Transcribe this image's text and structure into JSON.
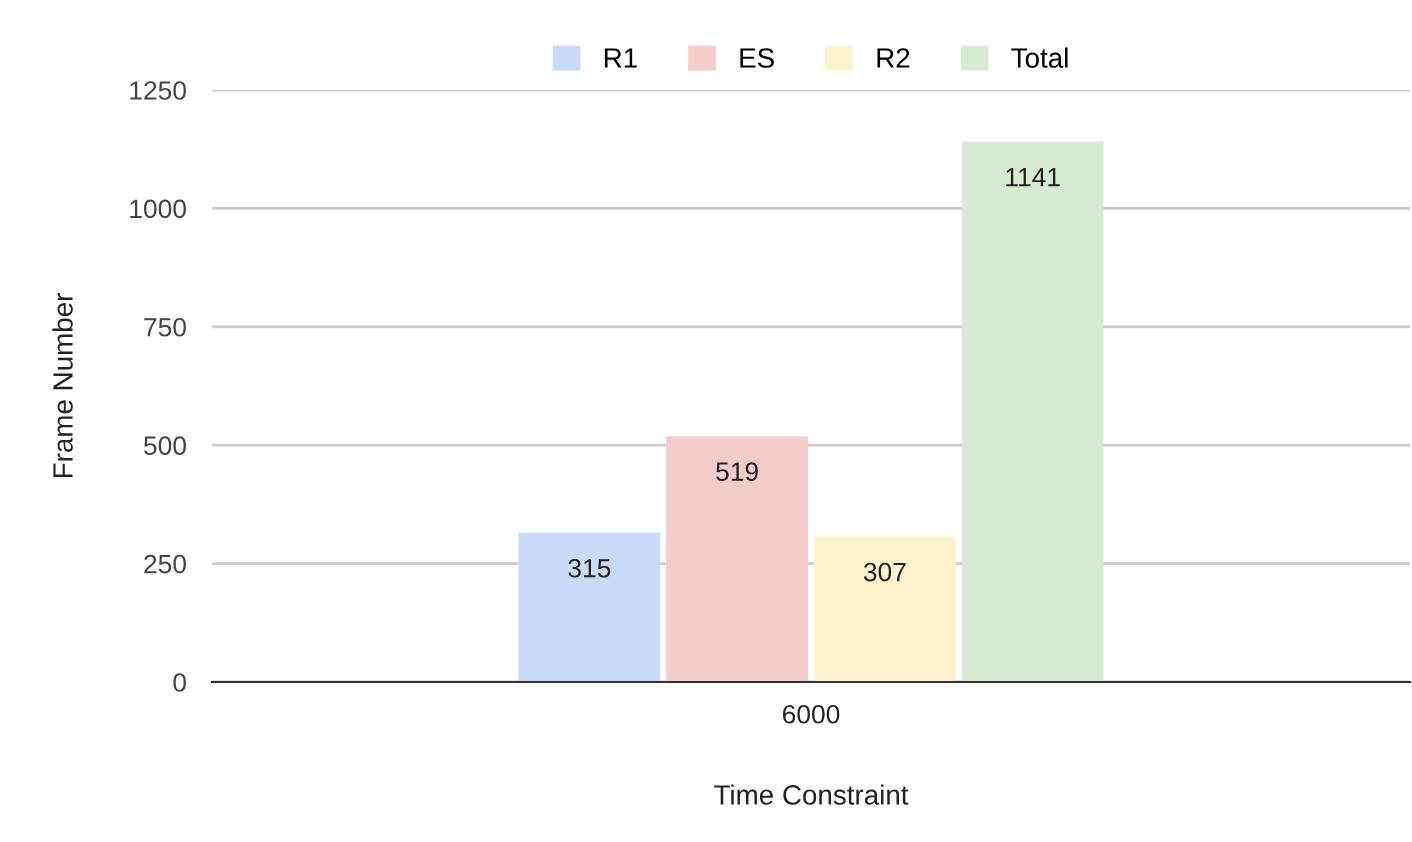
{
  "chart_data": {
    "type": "bar",
    "xlabel": "Time Constraint",
    "ylabel": "Frame Number",
    "categories": [
      "6000"
    ],
    "series": [
      {
        "name": "R1",
        "color": "#c9daf8",
        "values": [
          315
        ]
      },
      {
        "name": "ES",
        "color": "#f4cccc",
        "values": [
          519
        ]
      },
      {
        "name": "R2",
        "color": "#fff2cc",
        "values": [
          307
        ]
      },
      {
        "name": "Total",
        "color": "#d9ead3",
        "values": [
          1141
        ]
      }
    ],
    "ylim": [
      0,
      1250
    ],
    "yticks": [
      0,
      250,
      500,
      750,
      1000,
      1250
    ],
    "grid": "y",
    "legend": "top",
    "data_labels": true
  }
}
